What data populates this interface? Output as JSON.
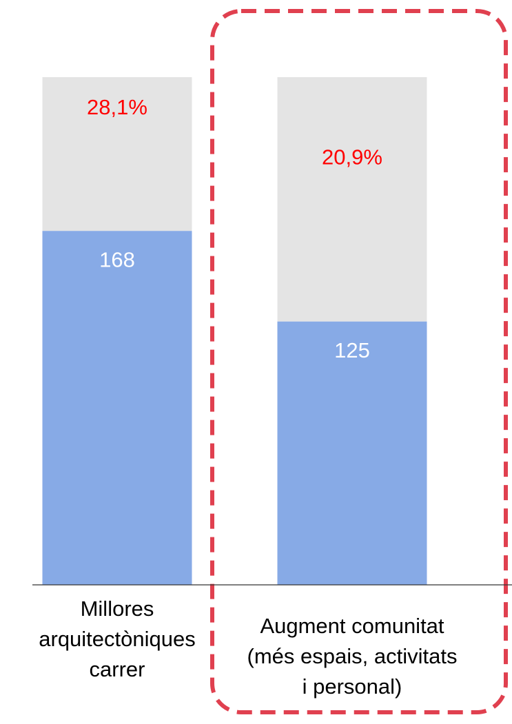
{
  "chart_data": {
    "type": "stacked_bar",
    "categories": [
      [
        "Millores",
        "arquitectòniques",
        "carrer"
      ],
      [
        "Augment comunitat",
        "(més espais, activitats",
        "i personal)"
      ]
    ],
    "series": [
      {
        "color": "#87aae6",
        "values": [
          168,
          125
        ],
        "label_color": "#ffffff"
      },
      {
        "color": "#e4e4e4",
        "values": [
          73,
          116
        ]
      }
    ],
    "shares": {
      "values": [
        28.1,
        20.9
      ],
      "value_labels": [
        "28,1%",
        "20,9%"
      ],
      "color": "#ff0000"
    },
    "ylim": [
      0,
      241
    ]
  }
}
